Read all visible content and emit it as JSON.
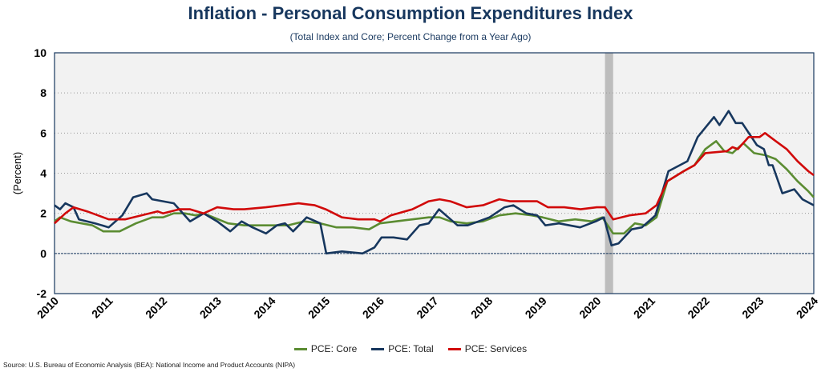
{
  "chart_data": {
    "type": "line",
    "title": "Inflation - Personal Consumption Expenditures Index",
    "subtitle": "(Total Index and Core; Percent Change from a Year Ago)",
    "ylabel": "(Percent)",
    "xlabel": "",
    "ylim": [
      -2,
      10
    ],
    "xlim": [
      2010,
      2024
    ],
    "yticks": [
      "-2",
      "0",
      "2",
      "4",
      "6",
      "8",
      "10"
    ],
    "xticks": [
      "2010",
      "2011",
      "2012",
      "2013",
      "2014",
      "2015",
      "2016",
      "2017",
      "2018",
      "2019",
      "2020",
      "2021",
      "2022",
      "2023",
      "2024"
    ],
    "grid": true,
    "legend_position": "bottom",
    "recession_shading": [
      2020.15,
      2020.3
    ],
    "series": [
      {
        "name": "PCE: Core",
        "color": "#5b8c32",
        "points": [
          [
            2010,
            1.6
          ],
          [
            2010.1,
            1.8
          ],
          [
            2010.3,
            1.6
          ],
          [
            2010.7,
            1.4
          ],
          [
            2010.9,
            1.1
          ],
          [
            2011.2,
            1.1
          ],
          [
            2011.5,
            1.5
          ],
          [
            2011.8,
            1.8
          ],
          [
            2012,
            1.8
          ],
          [
            2012.2,
            2.0
          ],
          [
            2012.4,
            2.0
          ],
          [
            2012.6,
            1.9
          ],
          [
            2012.75,
            2.0
          ],
          [
            2013.2,
            1.5
          ],
          [
            2013.5,
            1.4
          ],
          [
            2013.9,
            1.4
          ],
          [
            2014.3,
            1.4
          ],
          [
            2014.6,
            1.6
          ],
          [
            2014.9,
            1.5
          ],
          [
            2015.2,
            1.3
          ],
          [
            2015.5,
            1.3
          ],
          [
            2015.8,
            1.2
          ],
          [
            2016,
            1.5
          ],
          [
            2016.3,
            1.6
          ],
          [
            2016.6,
            1.7
          ],
          [
            2016.9,
            1.8
          ],
          [
            2017.1,
            1.8
          ],
          [
            2017.3,
            1.6
          ],
          [
            2017.6,
            1.5
          ],
          [
            2017.9,
            1.6
          ],
          [
            2018.2,
            1.9
          ],
          [
            2018.5,
            2.0
          ],
          [
            2018.8,
            1.9
          ],
          [
            2019,
            1.8
          ],
          [
            2019.3,
            1.6
          ],
          [
            2019.6,
            1.7
          ],
          [
            2019.9,
            1.6
          ],
          [
            2020.1,
            1.8
          ],
          [
            2020.3,
            1.0
          ],
          [
            2020.5,
            1.0
          ],
          [
            2020.7,
            1.5
          ],
          [
            2020.9,
            1.4
          ],
          [
            2021.1,
            1.8
          ],
          [
            2021.3,
            3.6
          ],
          [
            2021.6,
            4.1
          ],
          [
            2021.8,
            4.4
          ],
          [
            2022,
            5.2
          ],
          [
            2022.2,
            5.6
          ],
          [
            2022.35,
            5.1
          ],
          [
            2022.5,
            5.0
          ],
          [
            2022.7,
            5.5
          ],
          [
            2022.9,
            5.0
          ],
          [
            2023.1,
            4.9
          ],
          [
            2023.3,
            4.7
          ],
          [
            2023.5,
            4.2
          ],
          [
            2023.7,
            3.6
          ],
          [
            2023.9,
            3.1
          ],
          [
            2024,
            2.8
          ]
        ]
      },
      {
        "name": "PCE: Total",
        "color": "#17375e",
        "points": [
          [
            2010,
            2.4
          ],
          [
            2010.1,
            2.2
          ],
          [
            2010.2,
            2.5
          ],
          [
            2010.35,
            2.3
          ],
          [
            2010.45,
            1.7
          ],
          [
            2010.75,
            1.5
          ],
          [
            2011,
            1.3
          ],
          [
            2011.25,
            1.9
          ],
          [
            2011.45,
            2.8
          ],
          [
            2011.7,
            3.0
          ],
          [
            2011.8,
            2.7
          ],
          [
            2012,
            2.6
          ],
          [
            2012.2,
            2.5
          ],
          [
            2012.5,
            1.6
          ],
          [
            2012.75,
            2.0
          ],
          [
            2013,
            1.6
          ],
          [
            2013.24,
            1.1
          ],
          [
            2013.45,
            1.6
          ],
          [
            2013.65,
            1.3
          ],
          [
            2013.9,
            1.0
          ],
          [
            2014.1,
            1.4
          ],
          [
            2014.25,
            1.5
          ],
          [
            2014.4,
            1.1
          ],
          [
            2014.65,
            1.8
          ],
          [
            2014.9,
            1.5
          ],
          [
            2015.01,
            0.0
          ],
          [
            2015.3,
            0.1
          ],
          [
            2015.68,
            0.0
          ],
          [
            2015.9,
            0.3
          ],
          [
            2016.03,
            0.8
          ],
          [
            2016.25,
            0.8
          ],
          [
            2016.5,
            0.7
          ],
          [
            2016.73,
            1.4
          ],
          [
            2016.9,
            1.5
          ],
          [
            2017.09,
            2.2
          ],
          [
            2017.43,
            1.4
          ],
          [
            2017.62,
            1.4
          ],
          [
            2018.02,
            1.8
          ],
          [
            2018.3,
            2.3
          ],
          [
            2018.46,
            2.4
          ],
          [
            2018.7,
            2.0
          ],
          [
            2018.9,
            1.9
          ],
          [
            2019.05,
            1.4
          ],
          [
            2019.3,
            1.5
          ],
          [
            2019.69,
            1.3
          ],
          [
            2019.98,
            1.6
          ],
          [
            2020.13,
            1.8
          ],
          [
            2020.27,
            0.4
          ],
          [
            2020.4,
            0.5
          ],
          [
            2020.64,
            1.2
          ],
          [
            2020.83,
            1.3
          ],
          [
            2021.08,
            1.9
          ],
          [
            2021.32,
            4.1
          ],
          [
            2021.67,
            4.6
          ],
          [
            2021.86,
            5.8
          ],
          [
            2022.16,
            6.8
          ],
          [
            2022.26,
            6.4
          ],
          [
            2022.43,
            7.1
          ],
          [
            2022.56,
            6.5
          ],
          [
            2022.68,
            6.5
          ],
          [
            2022.95,
            5.4
          ],
          [
            2023.08,
            5.2
          ],
          [
            2023.17,
            4.4
          ],
          [
            2023.24,
            4.4
          ],
          [
            2023.42,
            3.0
          ],
          [
            2023.64,
            3.2
          ],
          [
            2023.79,
            2.7
          ],
          [
            2024,
            2.4
          ]
        ]
      },
      {
        "name": "PCE: Services",
        "color": "#d10a0a",
        "points": [
          [
            2010,
            1.5
          ],
          [
            2010.2,
            2.0
          ],
          [
            2010.35,
            2.3
          ],
          [
            2010.6,
            2.1
          ],
          [
            2010.8,
            1.9
          ],
          [
            2011,
            1.7
          ],
          [
            2011.3,
            1.7
          ],
          [
            2011.6,
            1.9
          ],
          [
            2011.9,
            2.1
          ],
          [
            2012,
            2.0
          ],
          [
            2012.3,
            2.2
          ],
          [
            2012.5,
            2.2
          ],
          [
            2012.75,
            2.0
          ],
          [
            2013,
            2.3
          ],
          [
            2013.3,
            2.2
          ],
          [
            2013.5,
            2.2
          ],
          [
            2013.9,
            2.3
          ],
          [
            2014.2,
            2.4
          ],
          [
            2014.5,
            2.5
          ],
          [
            2014.8,
            2.4
          ],
          [
            2015,
            2.2
          ],
          [
            2015.3,
            1.8
          ],
          [
            2015.6,
            1.7
          ],
          [
            2015.9,
            1.7
          ],
          [
            2016,
            1.6
          ],
          [
            2016.2,
            1.9
          ],
          [
            2016.6,
            2.2
          ],
          [
            2016.9,
            2.6
          ],
          [
            2017.1,
            2.7
          ],
          [
            2017.3,
            2.6
          ],
          [
            2017.6,
            2.3
          ],
          [
            2017.9,
            2.4
          ],
          [
            2018.2,
            2.7
          ],
          [
            2018.4,
            2.6
          ],
          [
            2018.7,
            2.6
          ],
          [
            2018.9,
            2.6
          ],
          [
            2019.1,
            2.3
          ],
          [
            2019.4,
            2.3
          ],
          [
            2019.7,
            2.2
          ],
          [
            2020,
            2.3
          ],
          [
            2020.15,
            2.3
          ],
          [
            2020.3,
            1.7
          ],
          [
            2020.6,
            1.9
          ],
          [
            2020.9,
            2.0
          ],
          [
            2021.1,
            2.4
          ],
          [
            2021.3,
            3.6
          ],
          [
            2021.6,
            4.1
          ],
          [
            2021.8,
            4.4
          ],
          [
            2022,
            5.0
          ],
          [
            2022.4,
            5.1
          ],
          [
            2022.5,
            5.3
          ],
          [
            2022.6,
            5.2
          ],
          [
            2022.8,
            5.8
          ],
          [
            2023,
            5.8
          ],
          [
            2023.1,
            6.0
          ],
          [
            2023.3,
            5.6
          ],
          [
            2023.5,
            5.2
          ],
          [
            2023.7,
            4.6
          ],
          [
            2023.9,
            4.1
          ],
          [
            2024,
            3.9
          ]
        ]
      }
    ]
  },
  "source": "Source: U.S. Bureau of Economic Analysis (BEA): National Income and Product Accounts (NIPA)"
}
